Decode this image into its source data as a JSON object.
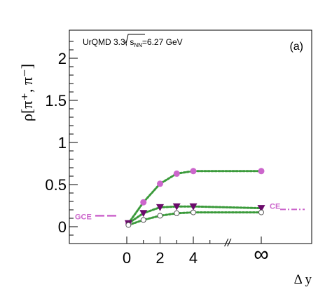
{
  "chart_data": {
    "type": "scatter",
    "ylabel": "ρ[π⁺, π⁻]",
    "xlabel": "Δ y",
    "ylim": [
      -0.2,
      2.3
    ],
    "yticks": [
      0,
      0.5,
      1,
      1.5,
      2
    ],
    "ytick_labels": [
      "0",
      "0.5",
      "1",
      "1.5",
      "2"
    ],
    "xticks": [
      0,
      2,
      4,
      "∞"
    ],
    "xtick_labels": [
      "0",
      "2",
      "4",
      "∞"
    ],
    "axis_break": "//",
    "grid": false,
    "annotation": "UrQMD 3.3, √s_NN=6.27 GeV",
    "annotation_parts": {
      "prefix": "UrQMD 3.3, ",
      "root": "s",
      "sub": "NN",
      "suffix": "=6.27 GeV"
    },
    "panel_label": "(a)",
    "colors": {
      "upper": "#cc66cc",
      "middle": "#6b0a6b",
      "lower": "#555555",
      "fit": "#3a9a3a",
      "limit": "#cc66cc"
    },
    "x": [
      0.1,
      1,
      2,
      3,
      4,
      "∞"
    ],
    "series": [
      {
        "marker": "filled-circle",
        "color": "#cc66cc",
        "values": [
          0.04,
          0.29,
          0.51,
          0.63,
          0.66,
          0.66
        ]
      },
      {
        "marker": "filled-triangle-down",
        "color": "#6b0a6b",
        "values": [
          0.04,
          0.16,
          0.23,
          0.24,
          0.24,
          0.22
        ]
      },
      {
        "marker": "open-circle",
        "color": "#555555",
        "values": [
          0.02,
          0.08,
          0.13,
          0.16,
          0.17,
          0.17
        ]
      }
    ],
    "limits": [
      {
        "label": "GCE",
        "y": 0.13,
        "side": "left",
        "style": "dashed",
        "color": "#cc66cc"
      },
      {
        "label": "CE",
        "y": 0.23,
        "side": "right",
        "style": "dash-dot",
        "color": "#cc66cc"
      }
    ]
  }
}
